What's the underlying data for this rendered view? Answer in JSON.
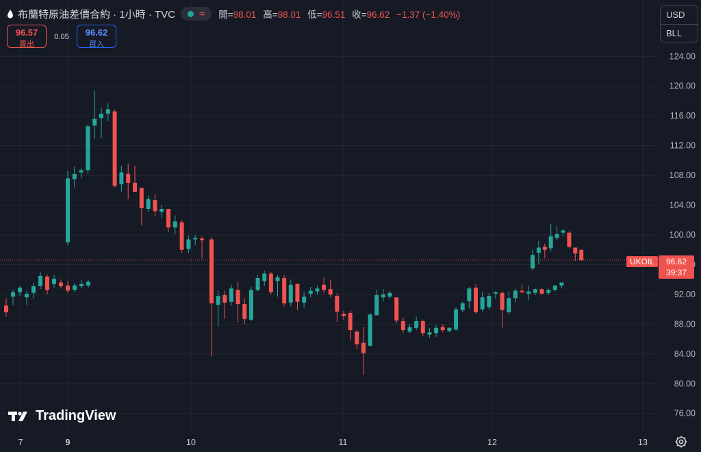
{
  "header": {
    "title": "布蘭特原油差價合約 · 1小時 · TVC",
    "ohlc": {
      "open_label": "開=",
      "open": "98.01",
      "high_label": "高=",
      "high": "98.01",
      "low_label": "低=",
      "low": "96.51",
      "close_label": "收=",
      "close": "96.62",
      "change": "−1.37 (−1.40%)"
    }
  },
  "trade": {
    "sell_price": "96.57",
    "sell_label": "賣出",
    "spread": "0.05",
    "buy_price": "96.62",
    "buy_label": "買入"
  },
  "units": {
    "currency": "USD",
    "unit": "BLL"
  },
  "logo": {
    "text": "TradingView"
  },
  "icons": {
    "drop": "oil-drop-icon",
    "wave": "approx-icon",
    "gear": "settings-gear-icon"
  },
  "colors": {
    "up": "#26a69a",
    "down": "#ef5350",
    "background": "#161a25",
    "grid": "#232733"
  },
  "chart_data": {
    "type": "candlestick",
    "symbol_label": "UKOIL",
    "last_price": "96.62",
    "countdown": "39:37",
    "y_ticks": [
      76,
      80,
      84,
      88,
      92,
      96,
      100,
      104,
      108,
      112,
      116,
      120,
      124
    ],
    "ylim": [
      74.5,
      125.5
    ],
    "x_ticks": [
      {
        "label": "7",
        "bold": false
      },
      {
        "label": "9",
        "bold": true
      },
      {
        "label": "10",
        "bold": false
      },
      {
        "label": "11",
        "bold": false
      },
      {
        "label": "12",
        "bold": false
      },
      {
        "label": "13",
        "bold": false
      }
    ],
    "candles": [
      [
        90.5,
        91.5,
        89.0,
        89.6
      ],
      [
        91.7,
        92.6,
        90.6,
        92.3
      ],
      [
        92.3,
        93.1,
        91.8,
        92.9
      ],
      [
        91.6,
        92.5,
        90.6,
        92.1
      ],
      [
        92.2,
        93.6,
        91.5,
        93.1
      ],
      [
        93.1,
        95.0,
        92.7,
        94.5
      ],
      [
        94.4,
        94.7,
        92.0,
        92.6
      ],
      [
        93.4,
        94.6,
        92.9,
        94.1
      ],
      [
        93.6,
        94.0,
        92.8,
        93.1
      ],
      [
        93.2,
        93.8,
        92.2,
        92.5
      ],
      [
        92.6,
        93.5,
        92.3,
        93.2
      ],
      [
        93.1,
        93.9,
        92.8,
        93.4
      ],
      [
        93.2,
        93.9,
        92.9,
        93.7
      ],
      [
        99.0,
        108.6,
        98.6,
        107.6
      ],
      [
        107.5,
        109.2,
        106.4,
        108.2
      ],
      [
        108.4,
        109.0,
        107.6,
        108.7
      ],
      [
        108.7,
        114.9,
        108.2,
        114.6
      ],
      [
        114.7,
        119.4,
        112.9,
        115.6
      ],
      [
        115.7,
        117.1,
        113.0,
        116.3
      ],
      [
        116.3,
        117.7,
        115.3,
        116.9
      ],
      [
        116.6,
        116.9,
        106.4,
        106.6
      ],
      [
        106.8,
        109.3,
        105.8,
        108.4
      ],
      [
        108.2,
        109.6,
        104.8,
        107.0
      ],
      [
        107.0,
        109.3,
        105.9,
        105.8
      ],
      [
        106.3,
        106.4,
        101.3,
        103.6
      ],
      [
        103.5,
        105.3,
        103.1,
        104.8
      ],
      [
        104.7,
        105.5,
        102.5,
        103.2
      ],
      [
        103.1,
        104.0,
        102.3,
        103.5
      ],
      [
        103.5,
        103.5,
        100.4,
        101.0
      ],
      [
        101.0,
        102.6,
        100.1,
        101.8
      ],
      [
        101.7,
        102.0,
        97.6,
        98.0
      ],
      [
        98.1,
        99.9,
        97.6,
        99.4
      ],
      [
        99.4,
        100.0,
        98.6,
        99.6
      ],
      [
        99.5,
        99.8,
        96.8,
        99.3
      ],
      [
        99.4,
        99.7,
        83.7,
        90.8
      ],
      [
        90.6,
        92.5,
        87.7,
        91.8
      ],
      [
        91.9,
        92.5,
        88.7,
        90.9
      ],
      [
        91.0,
        93.3,
        90.5,
        92.8
      ],
      [
        92.6,
        93.7,
        88.2,
        90.7
      ],
      [
        90.7,
        91.5,
        88.0,
        88.7
      ],
      [
        88.6,
        93.0,
        88.4,
        92.6
      ],
      [
        92.6,
        94.6,
        92.4,
        94.2
      ],
      [
        93.8,
        95.2,
        93.1,
        94.8
      ],
      [
        94.8,
        95.0,
        92.0,
        92.3
      ],
      [
        93.8,
        94.6,
        91.7,
        94.3
      ],
      [
        94.2,
        94.6,
        90.4,
        90.8
      ],
      [
        90.9,
        94.0,
        90.4,
        93.3
      ],
      [
        93.4,
        93.5,
        89.9,
        91.0
      ],
      [
        90.9,
        92.4,
        90.2,
        91.7
      ],
      [
        92.1,
        93.0,
        91.6,
        92.5
      ],
      [
        92.4,
        93.2,
        91.9,
        92.8
      ],
      [
        93.3,
        94.3,
        92.2,
        92.6
      ],
      [
        92.7,
        94.0,
        91.6,
        92.0
      ],
      [
        91.8,
        92.2,
        88.3,
        89.7
      ],
      [
        89.4,
        89.8,
        88.6,
        89.1
      ],
      [
        89.5,
        89.8,
        85.8,
        87.2
      ],
      [
        87.0,
        87.2,
        84.6,
        85.3
      ],
      [
        85.5,
        87.6,
        81.2,
        84.1
      ],
      [
        85.1,
        89.5,
        84.9,
        89.3
      ],
      [
        89.2,
        92.6,
        89.2,
        91.9
      ],
      [
        91.6,
        92.7,
        91.1,
        92.0
      ],
      [
        91.7,
        92.5,
        91.4,
        92.2
      ],
      [
        91.6,
        91.6,
        88.1,
        88.5
      ],
      [
        88.4,
        88.9,
        86.8,
        87.2
      ],
      [
        87.0,
        88.0,
        86.8,
        87.6
      ],
      [
        87.5,
        89.0,
        87.2,
        88.4
      ],
      [
        88.4,
        88.6,
        86.4,
        86.8
      ],
      [
        86.6,
        87.5,
        86.2,
        86.9
      ],
      [
        86.8,
        87.9,
        86.3,
        87.5
      ],
      [
        87.6,
        88.0,
        86.9,
        87.2
      ],
      [
        87.1,
        87.6,
        86.9,
        87.5
      ],
      [
        87.3,
        90.3,
        87.1,
        90.0
      ],
      [
        89.9,
        91.0,
        89.6,
        90.8
      ],
      [
        91.1,
        93.0,
        90.1,
        92.8
      ],
      [
        92.9,
        93.4,
        89.4,
        89.6
      ],
      [
        90.0,
        92.4,
        89.7,
        91.6
      ],
      [
        90.3,
        92.2,
        89.9,
        91.8
      ],
      [
        92.1,
        92.4,
        91.4,
        92.3
      ],
      [
        92.2,
        92.4,
        87.5,
        89.9
      ],
      [
        89.6,
        92.4,
        89.3,
        91.5
      ],
      [
        91.5,
        92.8,
        90.9,
        92.5
      ],
      [
        92.5,
        93.3,
        92.1,
        92.3
      ],
      [
        92.1,
        93.2,
        91.2,
        92.4
      ],
      [
        92.2,
        92.8,
        91.9,
        92.7
      ],
      [
        92.7,
        92.9,
        92.0,
        92.1
      ],
      [
        92.2,
        92.8,
        91.9,
        92.6
      ],
      [
        92.6,
        93.0,
        92.4,
        93.2
      ],
      [
        93.2,
        93.6,
        92.8,
        93.6
      ],
      [
        95.5,
        98.0,
        95.2,
        97.3
      ],
      [
        97.6,
        99.2,
        96.0,
        98.3
      ],
      [
        98.4,
        98.8,
        96.9,
        98.0
      ],
      [
        98.2,
        101.5,
        97.8,
        99.8
      ],
      [
        99.6,
        101.2,
        99.3,
        100.1
      ],
      [
        100.3,
        100.8,
        99.8,
        100.6
      ],
      [
        100.3,
        100.5,
        98.2,
        98.4
      ],
      [
        98.3,
        98.3,
        96.5,
        97.5
      ],
      [
        98.0,
        98.0,
        96.5,
        96.6
      ]
    ]
  }
}
